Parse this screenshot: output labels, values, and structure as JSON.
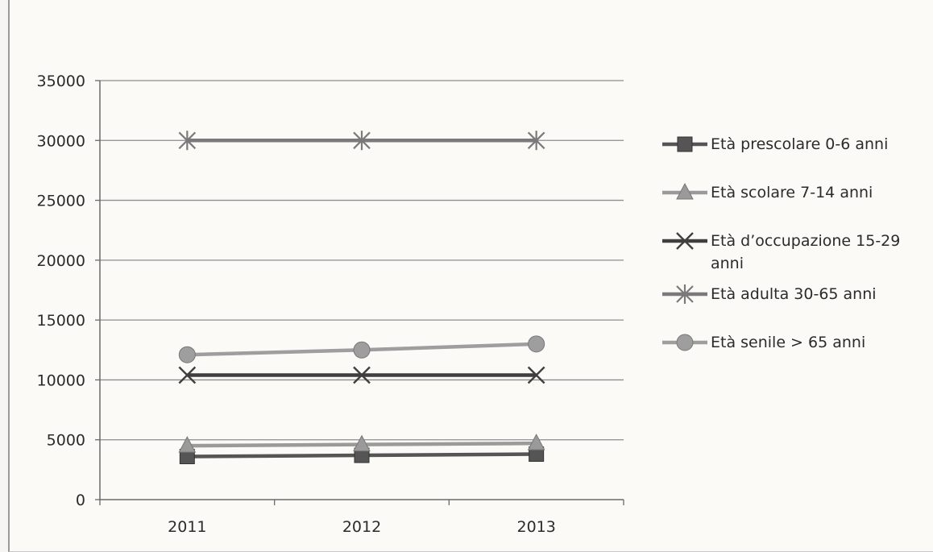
{
  "chart_data": {
    "type": "line",
    "categories": [
      "2011",
      "2012",
      "2013"
    ],
    "ylim": [
      0,
      35000
    ],
    "yticks": [
      "0",
      "5000",
      "10000",
      "15000",
      "20000",
      "25000",
      "30000",
      "35000"
    ],
    "grid": true,
    "legend_position": "right",
    "series": [
      {
        "name": "Età prescolare 0-6 anni",
        "values": [
          3600,
          3700,
          3800
        ],
        "color": "#555555",
        "marker": "square"
      },
      {
        "name": "Età scolare 7-14 anni",
        "values": [
          4500,
          4600,
          4700
        ],
        "color": "#9a9a9a",
        "marker": "triangle"
      },
      {
        "name": "Età d’occupazione 15-29 anni",
        "values": [
          10400,
          10400,
          10400
        ],
        "color": "#3f3f3f",
        "marker": "x"
      },
      {
        "name": "Età adulta 30-65 anni",
        "values": [
          30000,
          30000,
          30000
        ],
        "color": "#7a7a7a",
        "marker": "star"
      },
      {
        "name": "Età senile > 65 anni",
        "values": [
          12100,
          12500,
          13000
        ],
        "color": "#9e9e9e",
        "marker": "circle"
      }
    ]
  }
}
